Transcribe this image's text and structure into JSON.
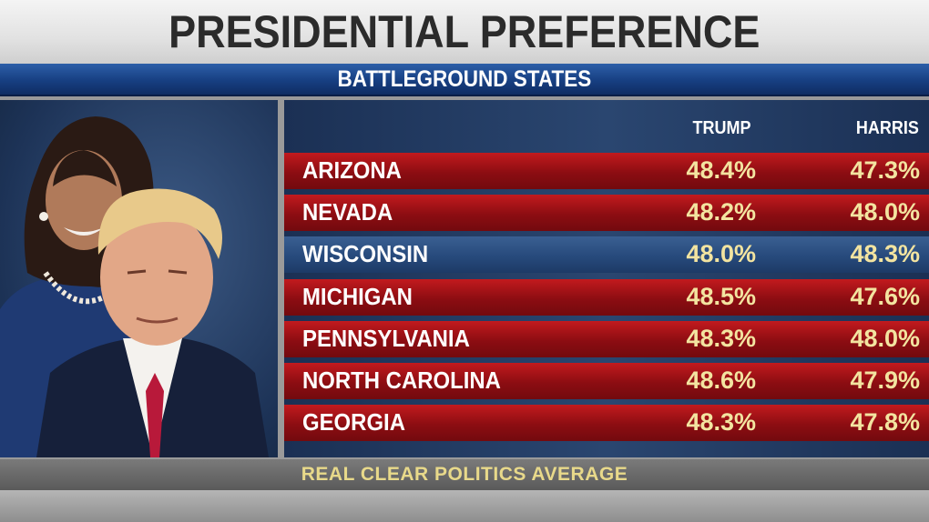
{
  "header": {
    "title": "PRESIDENTIAL PREFERENCE",
    "subtitle": "BATTLEGROUND STATES"
  },
  "footer": {
    "source": "REAL CLEAR POLITICS AVERAGE"
  },
  "chart_data": {
    "type": "table",
    "title": "PRESIDENTIAL PREFERENCE",
    "subtitle": "BATTLEGROUND STATES",
    "columns": [
      "TRUMP",
      "HARRIS"
    ],
    "rows": [
      {
        "state": "ARIZONA",
        "trump": "48.4%",
        "harris": "47.3%",
        "leader": "TRUMP"
      },
      {
        "state": "NEVADA",
        "trump": "48.2%",
        "harris": "48.0%",
        "leader": "TRUMP"
      },
      {
        "state": "WISCONSIN",
        "trump": "48.0%",
        "harris": "48.3%",
        "leader": "HARRIS"
      },
      {
        "state": "MICHIGAN",
        "trump": "48.5%",
        "harris": "47.6%",
        "leader": "TRUMP"
      },
      {
        "state": "PENNSYLVANIA",
        "trump": "48.3%",
        "harris": "48.0%",
        "leader": "TRUMP"
      },
      {
        "state": "NORTH CAROLINA",
        "trump": "48.6%",
        "harris": "47.9%",
        "leader": "TRUMP"
      },
      {
        "state": "GEORGIA",
        "trump": "48.3%",
        "harris": "47.8%",
        "leader": "TRUMP"
      }
    ],
    "source": "REAL CLEAR POLITICS AVERAGE"
  },
  "colors": {
    "trump_lead_row": "#8c0d12",
    "harris_lead_row": "#274a7c",
    "value_text": "#f3e4a0",
    "title_band": "#e2e2e2",
    "subtitle_band": "#173f82"
  }
}
